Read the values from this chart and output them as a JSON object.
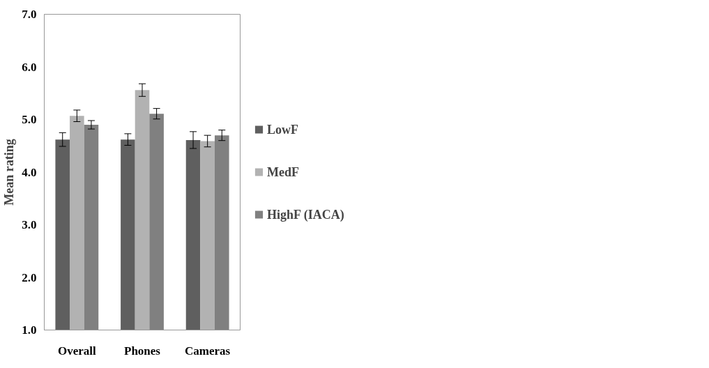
{
  "chart_data": {
    "type": "bar",
    "ylabel": "Mean rating",
    "categories": [
      "Overall",
      "Phones",
      "Cameras"
    ],
    "series": [
      {
        "name": "LowF",
        "color": "#5f5f5f",
        "values": [
          4.62,
          4.62,
          4.61
        ],
        "errors": [
          0.13,
          0.11,
          0.16
        ]
      },
      {
        "name": "MedF",
        "color": "#b2b2b2",
        "values": [
          5.07,
          5.56,
          4.59
        ],
        "errors": [
          0.11,
          0.12,
          0.11
        ]
      },
      {
        "name": "HighF (IACA)",
        "color": "#808080",
        "values": [
          4.9,
          5.11,
          4.7
        ],
        "errors": [
          0.08,
          0.1,
          0.1
        ]
      }
    ],
    "ylim": [
      1,
      7
    ],
    "yticks": [
      {
        "value": 1,
        "label": "1.0"
      },
      {
        "value": 2,
        "label": "2.0"
      },
      {
        "value": 3,
        "label": "3.0"
      },
      {
        "value": 4,
        "label": "4.0"
      },
      {
        "value": 5,
        "label": "5.0"
      },
      {
        "value": 6,
        "label": "6.0"
      },
      {
        "value": 7,
        "label": "7.0"
      }
    ],
    "grid": false,
    "legend": "right"
  }
}
